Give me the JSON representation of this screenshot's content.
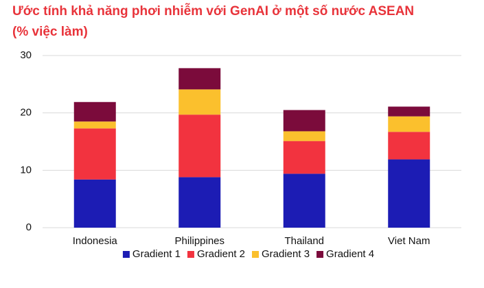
{
  "chart_data": {
    "type": "stacked-bar",
    "title": "Ước tính khả năng phơi nhiễm với GenAI ở một số nước ASEAN (% việc làm)",
    "categories": [
      "Indonesia",
      "Philippines",
      "Thailand",
      "Viet Nam"
    ],
    "series": [
      {
        "name": "Gradient 1",
        "color": "#1c1cb4",
        "values": [
          8.4,
          8.8,
          9.4,
          11.9
        ]
      },
      {
        "name": "Gradient 2",
        "color": "#f2333f",
        "values": [
          8.9,
          10.9,
          5.7,
          4.8
        ]
      },
      {
        "name": "Gradient 3",
        "color": "#fbc02d",
        "values": [
          1.2,
          4.4,
          1.7,
          2.7
        ]
      },
      {
        "name": "Gradient 4",
        "color": "#7b0b3b",
        "values": [
          3.4,
          3.7,
          3.7,
          1.7
        ]
      }
    ],
    "ylim": [
      0,
      30
    ],
    "yticks": [
      0,
      10,
      20,
      30
    ],
    "grid": true,
    "legend": "bottom"
  }
}
